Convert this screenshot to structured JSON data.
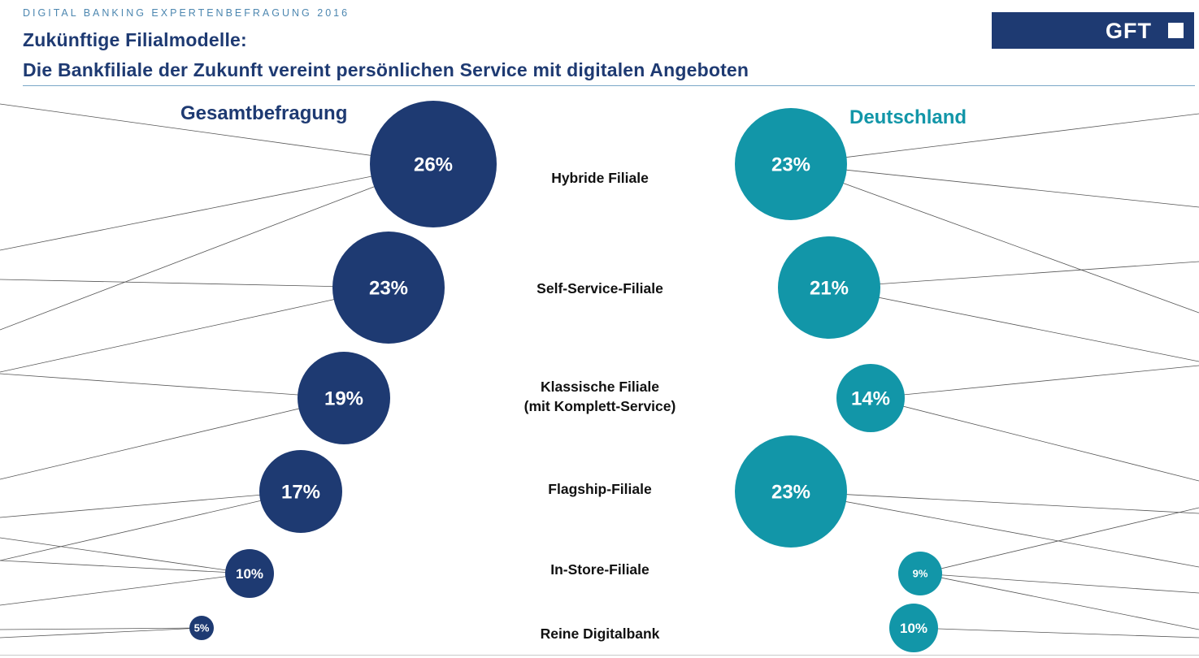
{
  "header": {
    "kicker": "DIGITAL BANKING EXPERTENBEFRAGUNG 2016",
    "title_line1": "Zukünftige Filialmodelle:",
    "title_line2": "Die Bankfiliale der Zukunft vereint persönlichen Service mit digitalen Angeboten"
  },
  "logo": {
    "text": "GFT"
  },
  "colors": {
    "navy": "#1e3a72",
    "teal": "#1296a8",
    "line": "#555555"
  },
  "chart_data": {
    "type": "bubble",
    "categories": [
      "Hybride Filiale",
      "Self-Service-Filiale",
      "Klassische Filiale\n(mit Komplett-Service)",
      "Flagship-Filiale",
      "In-Store-Filiale",
      "Reine Digitalbank"
    ],
    "series": [
      {
        "name": "Gesamtbefragung",
        "color": "#1e3a72",
        "values": [
          26,
          23,
          19,
          17,
          10,
          5
        ],
        "labels": [
          "26%",
          "23%",
          "19%",
          "17%",
          "10%",
          "5%"
        ]
      },
      {
        "name": "Deutschland",
        "color": "#1296a8",
        "values": [
          23,
          21,
          14,
          23,
          9,
          10
        ],
        "labels": [
          "23%",
          "21%",
          "14%",
          "23%",
          "9%",
          "10%"
        ]
      }
    ]
  }
}
